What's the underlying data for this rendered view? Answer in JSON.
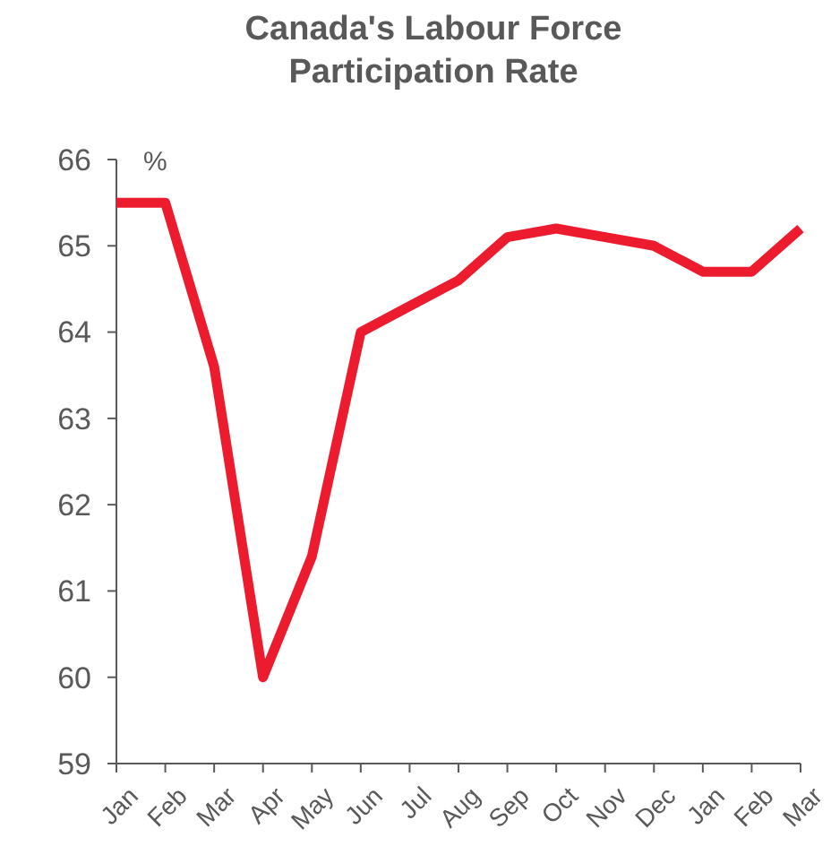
{
  "chart_data": {
    "type": "line",
    "title": "Canada's Labour Force Participation Rate",
    "ylabel": "%",
    "categories": [
      "Jan",
      "Feb",
      "Mar",
      "Apr",
      "May",
      "Jun",
      "Jul",
      "Aug",
      "Sep",
      "Oct",
      "Nov",
      "Dec",
      "Jan",
      "Feb",
      "Mar"
    ],
    "series": [
      {
        "color": "#ed1b2e",
        "values": [
          65.5,
          65.5,
          63.6,
          60.0,
          61.4,
          64.0,
          64.3,
          64.6,
          65.1,
          65.2,
          65.1,
          65.0,
          64.7,
          64.7,
          65.2
        ]
      }
    ],
    "ylim": [
      59,
      66
    ],
    "yticks": [
      59,
      60,
      61,
      62,
      63,
      64,
      65,
      66
    ],
    "grid": false,
    "marker": "none",
    "line_style": "solid"
  }
}
